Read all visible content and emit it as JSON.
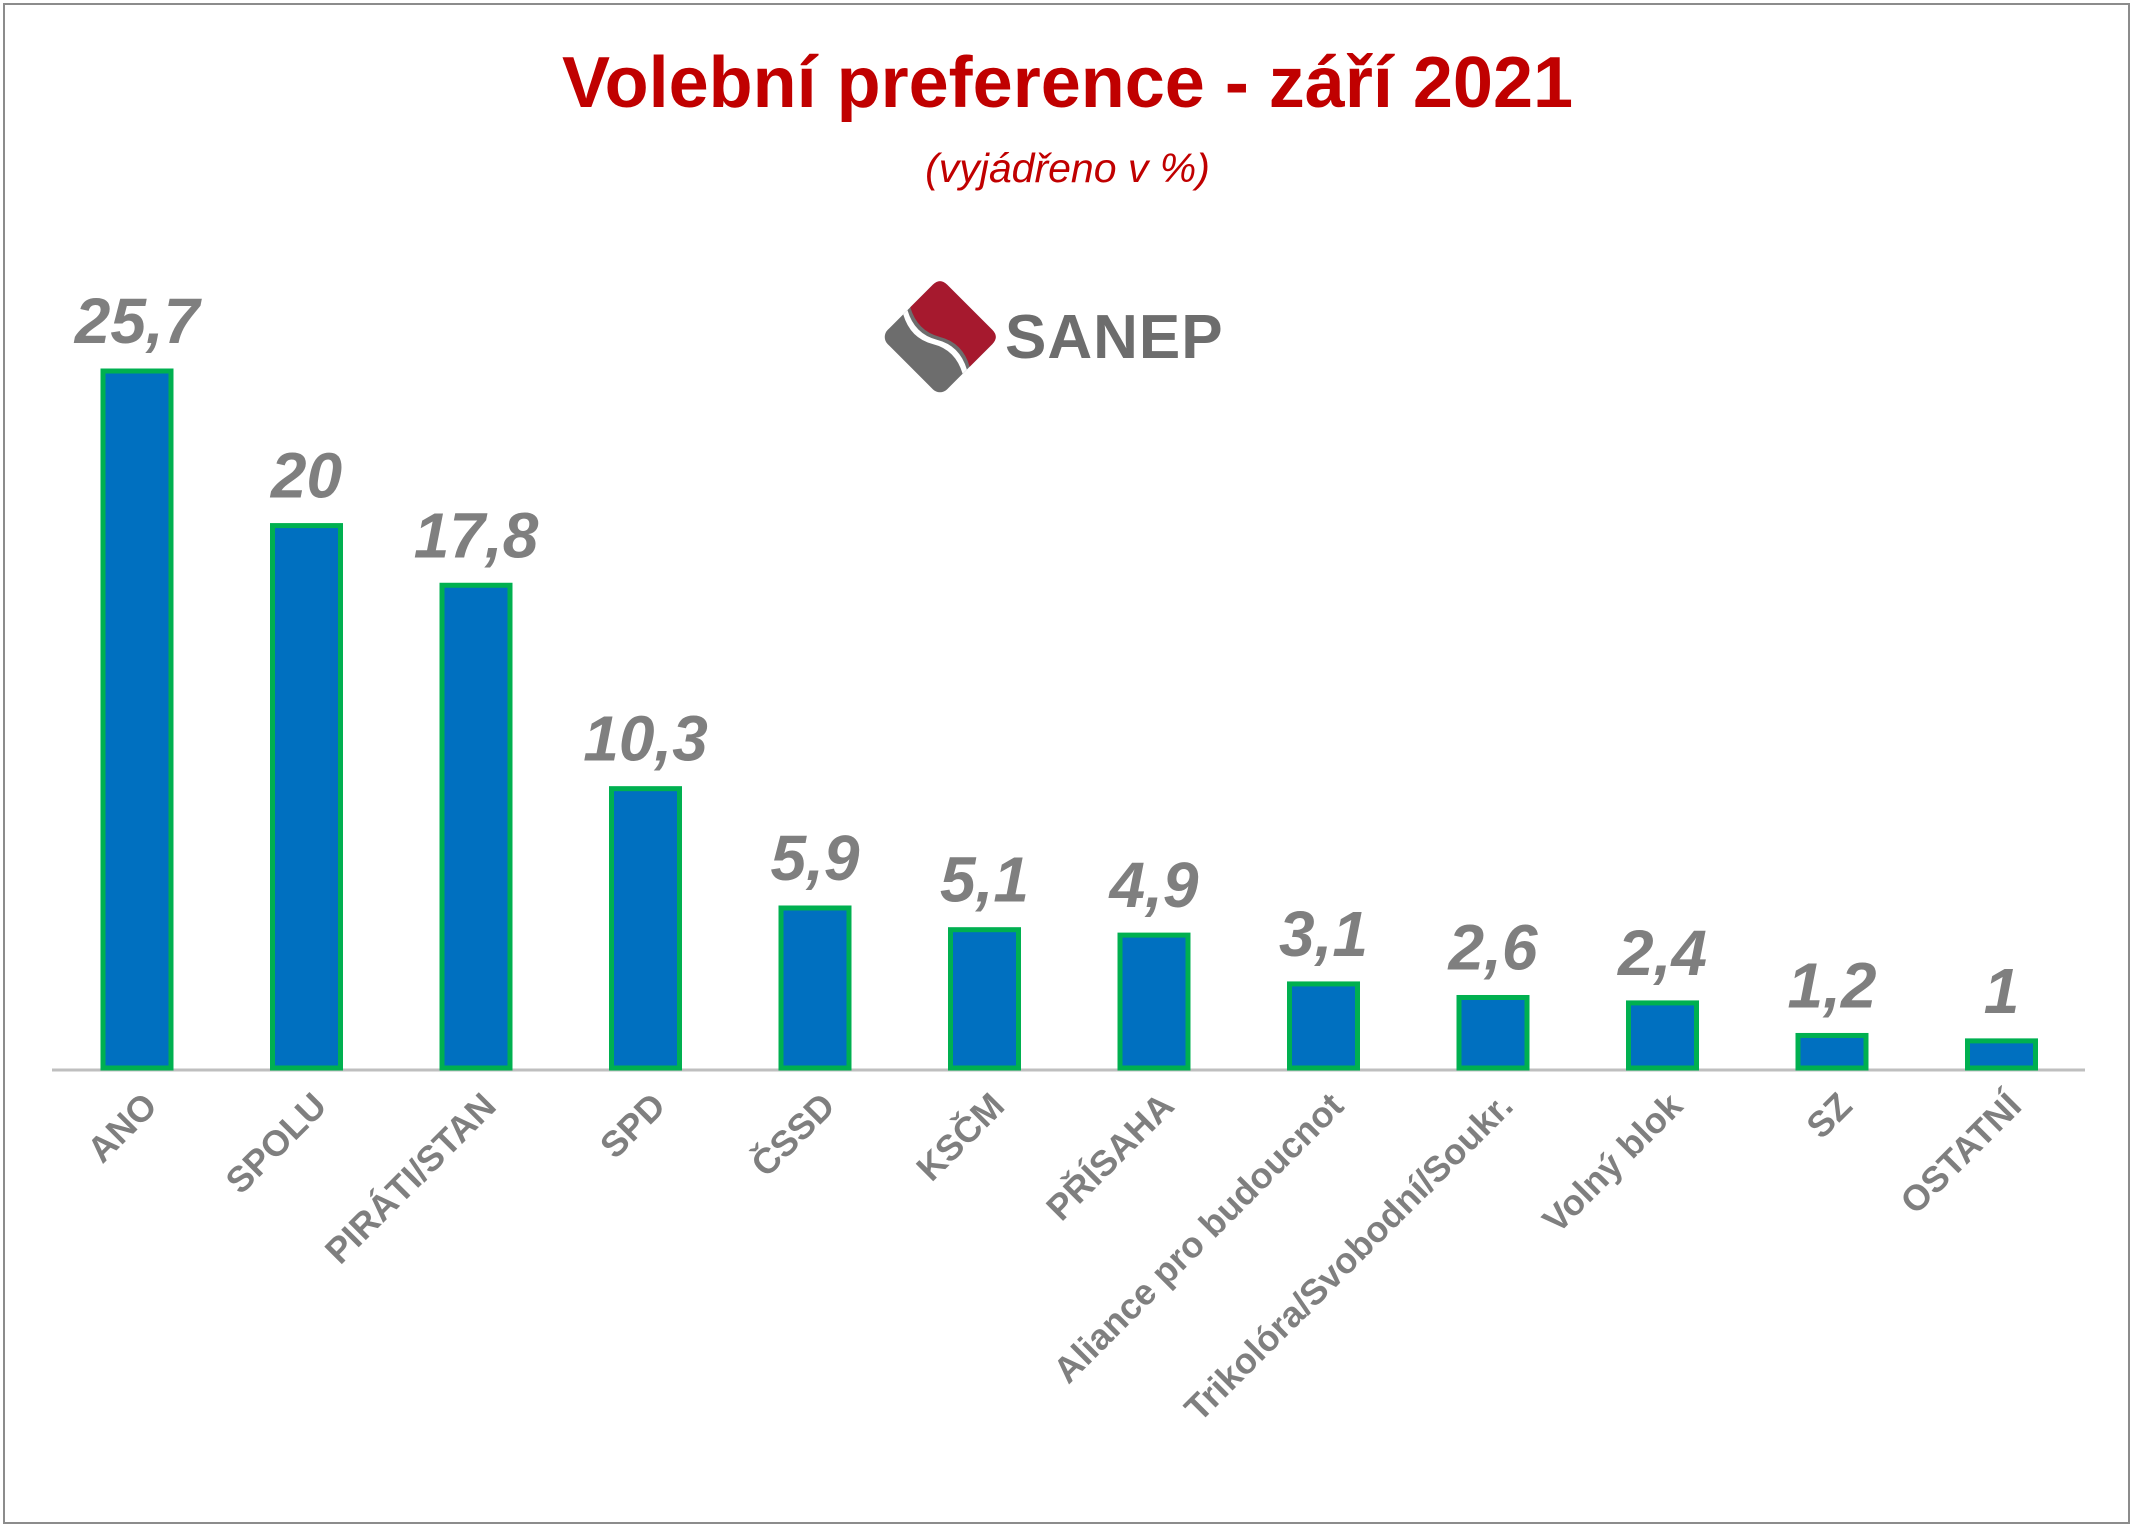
{
  "chart_data": {
    "type": "bar",
    "title": "Volební preference - září 2021",
    "subtitle": "(vyjádřeno v %)",
    "categories": [
      "ANO",
      "SPOLU",
      "PIRÁTI/STAN",
      "SPD",
      "ČSSD",
      "KSČM",
      "PŘÍSAHA",
      "Aliance pro budoucnot",
      "Trikolóra/Svobodní/Soukr.",
      "Volný blok",
      "SZ",
      "OSTATNÍ"
    ],
    "values": [
      25.7,
      20,
      17.8,
      10.3,
      5.9,
      5.1,
      4.9,
      3.1,
      2.6,
      2.4,
      1.2,
      1
    ],
    "value_labels": [
      "25,7",
      "20",
      "17,8",
      "10,3",
      "5,9",
      "5,1",
      "4,9",
      "3,1",
      "2,6",
      "2,4",
      "1,2",
      "1"
    ],
    "bar_color": "#0070c0",
    "bar_outline_color": "#00b050",
    "label_color": "#7f7f7f",
    "title_color": "#c00000",
    "ylim": [
      0,
      25.7
    ],
    "grid": false,
    "legend": false
  },
  "logo": {
    "text": "SANEP",
    "primary_color": "#a6192e",
    "secondary_color": "#6d6d6d"
  }
}
